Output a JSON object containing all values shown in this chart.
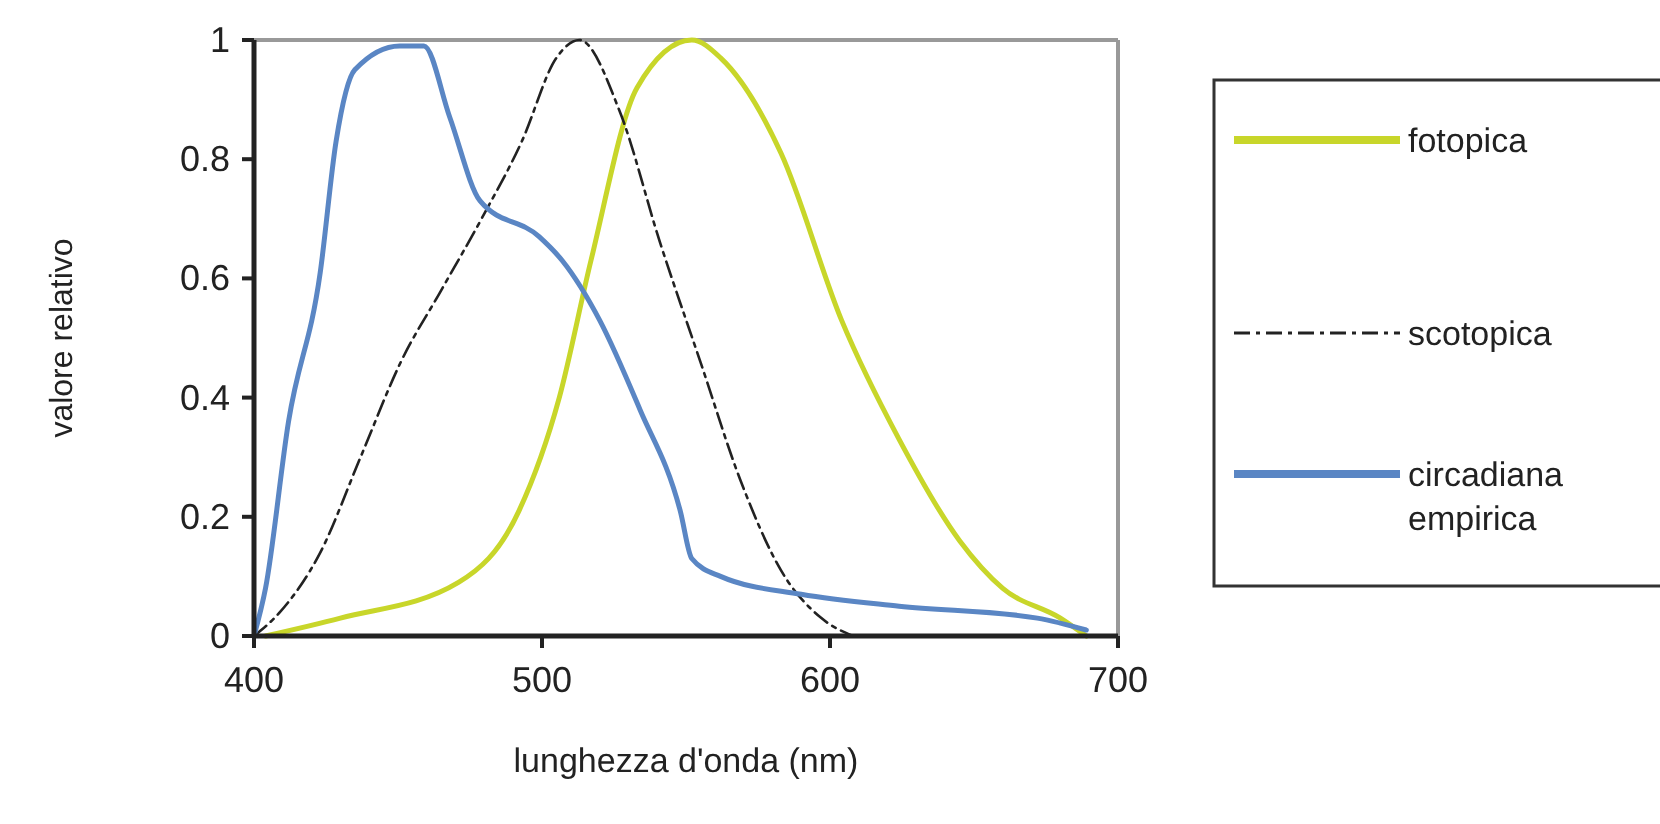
{
  "chart_data": {
    "type": "line",
    "xlabel": "lunghezza d'onda (nm)",
    "ylabel": "valore relativo",
    "xlim": [
      400,
      700
    ],
    "xticks": [
      400,
      500,
      600,
      700
    ],
    "ylim": [
      0,
      1
    ],
    "yticks": [
      0,
      0.2,
      0.4,
      0.6,
      0.8,
      1
    ],
    "grid": false,
    "legend": "right",
    "series": [
      {
        "name": "fotopica",
        "color": "#c8d62a",
        "line_style": "solid",
        "x": [
          404,
          430,
          471,
          492,
          506,
          517,
          533,
          552,
          562,
          583,
          604,
          624,
          645,
          660,
          680,
          689
        ],
        "values": [
          0,
          0.03,
          0.09,
          0.21,
          0.4,
          0.63,
          0.92,
          1,
          0.97,
          0.81,
          0.53,
          0.33,
          0.16,
          0.08,
          0.03,
          0
        ]
      },
      {
        "name": "scotopica",
        "color": "#222222",
        "line_style": "dashed",
        "x": [
          400,
          409,
          423,
          437,
          451,
          465,
          479,
          493,
          505,
          513,
          527,
          541,
          555,
          569,
          583,
          597,
          608
        ],
        "values": [
          0,
          0.04,
          0.14,
          0.3,
          0.46,
          0.58,
          0.7,
          0.83,
          0.97,
          1,
          0.88,
          0.66,
          0.46,
          0.26,
          0.11,
          0.03,
          0
        ]
      },
      {
        "name": "circadiana empirica",
        "color": "#5a86c4",
        "line_style": "solid",
        "x": [
          400,
          404,
          412,
          423,
          428.5,
          435,
          450.6,
          459,
          468,
          478.5,
          499,
          507,
          520,
          534,
          548,
          552,
          562,
          590,
          624,
          672,
          689
        ],
        "values": [
          0,
          0.08,
          0.36,
          0.61,
          0.83,
          0.95,
          0.99,
          0.99,
          0.87,
          0.73,
          0.67,
          0.63,
          0.53,
          0.38,
          0.21,
          0.13,
          0.1,
          0.07,
          0.05,
          0.03,
          0.01
        ]
      }
    ]
  }
}
